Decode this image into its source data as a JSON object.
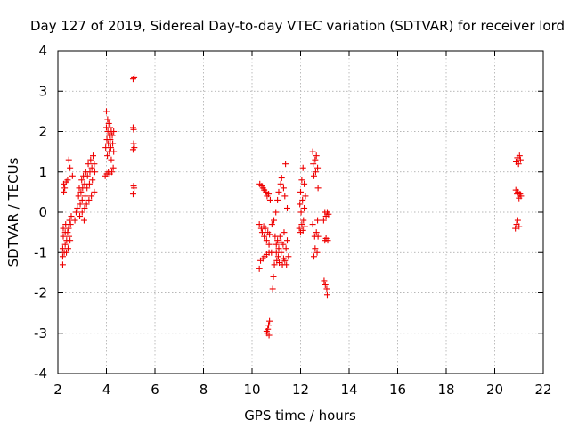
{
  "chart_data": {
    "type": "scatter",
    "title": "Day 127 of 2019, Sidereal Day-to-day VTEC variation (SDTVAR) for receiver lord",
    "xlabel": "GPS time / hours",
    "ylabel": "SDTVAR / TECUs",
    "xlim": [
      2,
      22
    ],
    "ylim": [
      -4,
      4
    ],
    "xticks": [
      2,
      4,
      6,
      8,
      10,
      12,
      14,
      16,
      18,
      20,
      22
    ],
    "yticks": [
      -4,
      -3,
      -2,
      -1,
      0,
      1,
      2,
      3,
      4
    ],
    "xtick_labels": [
      "2",
      "4",
      "6",
      "8",
      "10",
      "12",
      "14",
      "16",
      "18",
      "20",
      "22"
    ],
    "ytick_labels": [
      "-4",
      "-3",
      "-2",
      "-1",
      "0",
      "1",
      "2",
      "3",
      "4"
    ],
    "grid": true,
    "marker": "+",
    "series": [
      {
        "name": "SDTVAR",
        "color": "#ee0000",
        "points": [
          [
            2.2,
            -1.3
          ],
          [
            2.2,
            -1.1
          ],
          [
            2.2,
            -0.9
          ],
          [
            2.22,
            -0.6
          ],
          [
            2.22,
            -0.4
          ],
          [
            2.24,
            0.5
          ],
          [
            2.24,
            0.7
          ],
          [
            2.26,
            -1.0
          ],
          [
            2.28,
            0.6
          ],
          [
            2.3,
            -0.8
          ],
          [
            2.3,
            -0.5
          ],
          [
            2.32,
            -0.3
          ],
          [
            2.34,
            0.75
          ],
          [
            2.35,
            -1.0
          ],
          [
            2.36,
            -0.7
          ],
          [
            2.4,
            -0.5
          ],
          [
            2.4,
            0.8
          ],
          [
            2.42,
            -0.9
          ],
          [
            2.44,
            -0.4
          ],
          [
            2.45,
            1.3
          ],
          [
            2.46,
            -0.6
          ],
          [
            2.48,
            -0.2
          ],
          [
            2.5,
            -0.7
          ],
          [
            2.5,
            1.1
          ],
          [
            2.52,
            -0.3
          ],
          [
            2.55,
            -0.1
          ],
          [
            2.6,
            0.9
          ],
          [
            2.7,
            -0.2
          ],
          [
            2.75,
            0.0
          ],
          [
            2.8,
            0.1
          ],
          [
            2.85,
            0.4
          ],
          [
            2.88,
            0.6
          ],
          [
            2.9,
            -0.1
          ],
          [
            2.92,
            0.2
          ],
          [
            2.95,
            0.5
          ],
          [
            2.98,
            0.8
          ],
          [
            3.0,
            0.0
          ],
          [
            3.0,
            0.3
          ],
          [
            3.02,
            0.6
          ],
          [
            3.05,
            0.9
          ],
          [
            3.08,
            -0.2
          ],
          [
            3.1,
            0.1
          ],
          [
            3.1,
            0.7
          ],
          [
            3.12,
            0.4
          ],
          [
            3.15,
            1.0
          ],
          [
            3.18,
            0.2
          ],
          [
            3.2,
            0.6
          ],
          [
            3.22,
            0.9
          ],
          [
            3.25,
            1.2
          ],
          [
            3.28,
            0.3
          ],
          [
            3.3,
            0.7
          ],
          [
            3.32,
            1.0
          ],
          [
            3.35,
            1.3
          ],
          [
            3.38,
            0.4
          ],
          [
            3.4,
            1.1
          ],
          [
            3.42,
            0.8
          ],
          [
            3.45,
            1.4
          ],
          [
            3.5,
            0.5
          ],
          [
            3.5,
            1.2
          ],
          [
            3.52,
            1.0
          ],
          [
            3.95,
            0.9
          ],
          [
            3.97,
            1.6
          ],
          [
            4.0,
            2.5
          ],
          [
            4.0,
            2.1
          ],
          [
            4.02,
            1.8
          ],
          [
            4.02,
            0.95
          ],
          [
            4.04,
            1.4
          ],
          [
            4.05,
            2.3
          ],
          [
            4.06,
            2.0
          ],
          [
            4.08,
            1.7
          ],
          [
            4.08,
            1.0
          ],
          [
            4.1,
            2.2
          ],
          [
            4.12,
            1.9
          ],
          [
            4.12,
            1.5
          ],
          [
            4.14,
            0.95
          ],
          [
            4.15,
            2.1
          ],
          [
            4.16,
            1.8
          ],
          [
            4.18,
            1.6
          ],
          [
            4.2,
            2.0
          ],
          [
            4.2,
            1.3
          ],
          [
            4.22,
            1.0
          ],
          [
            4.24,
            1.9
          ],
          [
            4.26,
            1.7
          ],
          [
            4.28,
            1.1
          ],
          [
            4.3,
            2.0
          ],
          [
            4.3,
            1.5
          ],
          [
            5.1,
            3.3
          ],
          [
            5.14,
            3.35
          ],
          [
            5.1,
            2.1
          ],
          [
            5.12,
            2.05
          ],
          [
            5.12,
            1.7
          ],
          [
            5.15,
            1.6
          ],
          [
            5.1,
            1.55
          ],
          [
            5.12,
            0.65
          ],
          [
            5.14,
            0.6
          ],
          [
            5.1,
            0.45
          ],
          [
            10.3,
            -1.4
          ],
          [
            10.3,
            -0.3
          ],
          [
            10.32,
            0.7
          ],
          [
            10.35,
            -1.2
          ],
          [
            10.38,
            -0.4
          ],
          [
            10.4,
            0.65
          ],
          [
            10.42,
            -0.5
          ],
          [
            10.45,
            -1.15
          ],
          [
            10.45,
            0.6
          ],
          [
            10.48,
            -0.35
          ],
          [
            10.5,
            -0.6
          ],
          [
            10.5,
            0.55
          ],
          [
            10.52,
            -1.1
          ],
          [
            10.55,
            -0.4
          ],
          [
            10.58,
            0.5
          ],
          [
            10.6,
            -0.7
          ],
          [
            10.6,
            -1.05
          ],
          [
            10.62,
            0.4
          ],
          [
            10.65,
            -0.5
          ],
          [
            10.68,
            0.45
          ],
          [
            10.7,
            -0.8
          ],
          [
            10.7,
            -1.0
          ],
          [
            10.72,
            -0.55
          ],
          [
            10.75,
            0.3
          ],
          [
            10.6,
            -2.95
          ],
          [
            10.62,
            -3.0
          ],
          [
            10.65,
            -2.9
          ],
          [
            10.68,
            -2.8
          ],
          [
            10.7,
            -3.05
          ],
          [
            10.72,
            -2.7
          ],
          [
            10.8,
            -1.0
          ],
          [
            10.82,
            -0.3
          ],
          [
            10.85,
            -1.9
          ],
          [
            10.88,
            -1.6
          ],
          [
            10.9,
            -0.2
          ],
          [
            10.92,
            -1.3
          ],
          [
            10.95,
            -0.6
          ],
          [
            10.98,
            0.0
          ],
          [
            11.0,
            -1.0
          ],
          [
            11.0,
            -0.8
          ],
          [
            11.02,
            -1.2
          ],
          [
            11.05,
            0.3
          ],
          [
            11.05,
            -0.7
          ],
          [
            11.08,
            -1.1
          ],
          [
            11.1,
            -0.9
          ],
          [
            11.1,
            0.5
          ],
          [
            11.12,
            -1.25
          ],
          [
            11.15,
            -0.6
          ],
          [
            11.18,
            0.7
          ],
          [
            11.2,
            -1.0
          ],
          [
            11.2,
            -0.75
          ],
          [
            11.22,
            0.85
          ],
          [
            11.25,
            -1.3
          ],
          [
            11.28,
            -0.8
          ],
          [
            11.3,
            0.6
          ],
          [
            11.3,
            -1.15
          ],
          [
            11.32,
            -0.5
          ],
          [
            11.35,
            0.4
          ],
          [
            11.35,
            -1.2
          ],
          [
            11.38,
            1.2
          ],
          [
            11.4,
            -0.9
          ],
          [
            11.42,
            -1.3
          ],
          [
            11.45,
            -0.7
          ],
          [
            11.45,
            0.1
          ],
          [
            11.5,
            -1.1
          ],
          [
            11.95,
            -0.4
          ],
          [
            11.97,
            0.2
          ],
          [
            12.0,
            -0.5
          ],
          [
            12.0,
            0.5
          ],
          [
            12.02,
            0.0
          ],
          [
            12.05,
            -0.3
          ],
          [
            12.05,
            0.8
          ],
          [
            12.08,
            0.3
          ],
          [
            12.1,
            -0.45
          ],
          [
            12.1,
            1.1
          ],
          [
            12.12,
            -0.2
          ],
          [
            12.15,
            0.7
          ],
          [
            12.15,
            0.1
          ],
          [
            12.18,
            -0.35
          ],
          [
            12.2,
            0.4
          ],
          [
            12.5,
            1.5
          ],
          [
            12.5,
            -0.3
          ],
          [
            12.52,
            1.2
          ],
          [
            12.55,
            -1.1
          ],
          [
            12.55,
            0.9
          ],
          [
            12.58,
            -0.6
          ],
          [
            12.6,
            1.3
          ],
          [
            12.6,
            -0.9
          ],
          [
            12.62,
            1.0
          ],
          [
            12.65,
            -0.5
          ],
          [
            12.65,
            1.4
          ],
          [
            12.68,
            -1.0
          ],
          [
            12.7,
            1.1
          ],
          [
            12.7,
            -0.2
          ],
          [
            12.72,
            0.6
          ],
          [
            12.72,
            -0.6
          ],
          [
            12.95,
            -0.2
          ],
          [
            12.97,
            -1.7
          ],
          [
            13.0,
            0.0
          ],
          [
            13.0,
            -0.7
          ],
          [
            13.02,
            -1.8
          ],
          [
            13.05,
            -0.1
          ],
          [
            13.05,
            -0.65
          ],
          [
            13.08,
            -1.9
          ],
          [
            13.1,
            0.0
          ],
          [
            13.1,
            -2.05
          ],
          [
            13.12,
            -0.7
          ],
          [
            13.15,
            -0.05
          ],
          [
            20.85,
            -0.4
          ],
          [
            20.87,
            0.55
          ],
          [
            20.88,
            1.25
          ],
          [
            20.9,
            -0.3
          ],
          [
            20.92,
            0.45
          ],
          [
            20.93,
            1.35
          ],
          [
            20.95,
            -0.2
          ],
          [
            20.96,
            0.5
          ],
          [
            20.98,
            1.2
          ],
          [
            21.0,
            0.35
          ],
          [
            21.0,
            -0.35
          ],
          [
            21.02,
            1.4
          ],
          [
            21.04,
            0.45
          ],
          [
            21.06,
            1.3
          ],
          [
            21.08,
            0.4
          ]
        ]
      }
    ]
  }
}
